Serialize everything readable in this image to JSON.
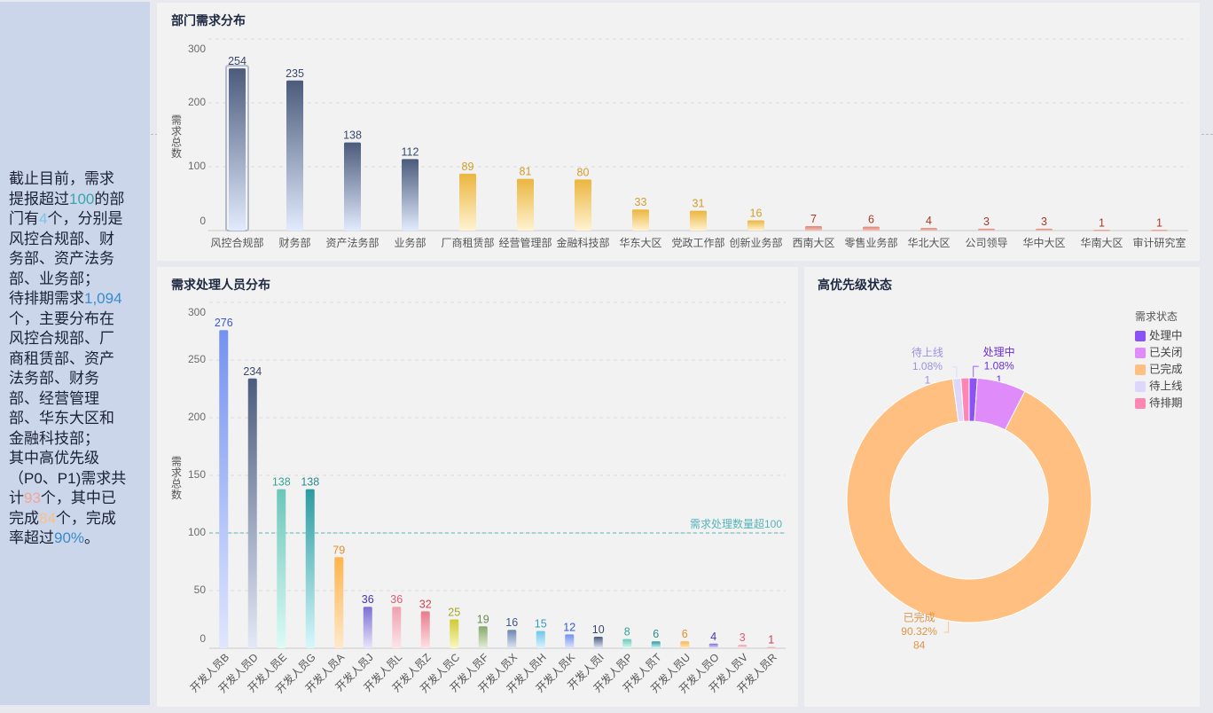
{
  "summary": {
    "lines": [
      [
        {
          "text": "截止目前，需求"
        }
      ],
      [
        {
          "text": "提报超过"
        },
        {
          "text": "100",
          "color": "#3aa6ab"
        },
        {
          "text": "的部"
        }
      ],
      [
        {
          "text": "门有"
        },
        {
          "text": "4",
          "color": "#7cc6e6"
        },
        {
          "text": "个，分别是"
        }
      ],
      [
        {
          "text": "风控合规部、财"
        }
      ],
      [
        {
          "text": "务部、资产法务"
        }
      ],
      [
        {
          "text": "部、业务部；"
        }
      ],
      [
        {
          "text": "待排期需求"
        },
        {
          "text": "1,094",
          "color": "#3a8bcb"
        }
      ],
      [
        {
          "text": "个，主要分布在"
        }
      ],
      [
        {
          "text": "风控合规部、厂"
        }
      ],
      [
        {
          "text": "商租赁部、资产"
        }
      ],
      [
        {
          "text": "法务部、财务"
        }
      ],
      [
        {
          "text": "部、经营管理"
        }
      ],
      [
        {
          "text": "部、华东大区和"
        }
      ],
      [
        {
          "text": "金融科技部；"
        }
      ],
      [
        {
          "text": "其中高优先级"
        }
      ],
      [
        {
          "text": "（P0、P1)需求共"
        }
      ],
      [
        {
          "text": "计"
        },
        {
          "text": "93",
          "color": "#f4a597"
        },
        {
          "text": "个，其中已"
        }
      ],
      [
        {
          "text": "完成"
        },
        {
          "text": "84",
          "color": "#f8c189"
        },
        {
          "text": "个，完成"
        }
      ],
      [
        {
          "text": "率超过"
        },
        {
          "text": "90%",
          "color": "#3a8bcb"
        },
        {
          "text": "。"
        }
      ]
    ]
  },
  "chart_data": [
    {
      "type": "bar",
      "title": "部门需求分布",
      "xlabel": "",
      "ylabel": "需求总数",
      "ylim": [
        0,
        300
      ],
      "yticks": [
        0,
        100,
        200,
        300
      ],
      "grid": true,
      "categories": [
        "风控合规部",
        "财务部",
        "资产法务部",
        "业务部",
        "厂商租赁部",
        "经营管理部",
        "金融科技部",
        "华东大区",
        "党政工作部",
        "创新业务部",
        "西南大区",
        "零售业务部",
        "华北大区",
        "公司领导",
        "华中大区",
        "华南大区",
        "审计研究室"
      ],
      "values": [
        254,
        235,
        138,
        112,
        89,
        81,
        80,
        33,
        31,
        16,
        7,
        6,
        4,
        3,
        3,
        1,
        1
      ],
      "bar_color_tier": [
        "navy",
        "navy",
        "navy",
        "navy",
        "gold",
        "gold",
        "gold",
        "gold",
        "gold",
        "gold",
        "red",
        "red",
        "red",
        "red",
        "red",
        "red",
        "red"
      ],
      "tiers": {
        "navy": {
          "top": "#4b5b7c",
          "bottom": "#e2ebfd",
          "label": "#3a4868"
        },
        "gold": {
          "top": "#ebb63f",
          "bottom": "#fff3d2",
          "label": "#d19d2c"
        },
        "red": {
          "top": "#de8474",
          "bottom": "#f3c2b8",
          "label": "#a9392b"
        }
      },
      "highlighted_category": "风控合规部"
    },
    {
      "type": "bar",
      "title": "需求处理人员分布",
      "xlabel": "",
      "ylabel": "需求总数",
      "ylim": [
        0,
        300
      ],
      "yticks": [
        0,
        50,
        100,
        150,
        200,
        250,
        300
      ],
      "grid": true,
      "categories": [
        "开发人员B",
        "开发人员D",
        "开发人员E",
        "开发人员G",
        "开发人员A",
        "开发人员J",
        "开发人员L",
        "开发人员Z",
        "开发人员C",
        "开发人员F",
        "开发人员X",
        "开发人员H",
        "开发人员K",
        "开发人员I",
        "开发人员P",
        "开发人员T",
        "开发人员U",
        "开发人员O",
        "开发人员V",
        "开发人员R"
      ],
      "values": [
        276,
        234,
        138,
        138,
        79,
        36,
        36,
        32,
        25,
        19,
        16,
        15,
        12,
        10,
        8,
        6,
        6,
        4,
        3,
        1
      ],
      "palette": [
        {
          "top": "#7491f1",
          "bottom": "#dfe7fd",
          "label": "#3957c9"
        },
        {
          "top": "#4c5c7d",
          "bottom": "#e3e9f6",
          "label": "#3a4868"
        },
        {
          "top": "#6cc6ba",
          "bottom": "#ddfbf6",
          "label": "#35a596"
        },
        {
          "top": "#2b9ba1",
          "bottom": "#d7f8fb",
          "label": "#288a90"
        },
        {
          "top": "#ffb44c",
          "bottom": "#ffe9cb",
          "label": "#e58f2a"
        },
        {
          "top": "#7b70d2",
          "bottom": "#e9e5fc",
          "label": "#4634b0"
        },
        {
          "top": "#f09fb0",
          "bottom": "#fde6eb",
          "label": "#e05a72"
        },
        {
          "top": "#e97b8b",
          "bottom": "#fde2e7",
          "label": "#cf3f52"
        },
        {
          "top": "#d0cb2e",
          "bottom": "#f9f8c4",
          "label": "#a8a51e"
        },
        {
          "top": "#87a96d",
          "bottom": "#e3eed8",
          "label": "#6a8a4a"
        },
        {
          "top": "#6d86ae",
          "bottom": "#dfe6f2",
          "label": "#3d5784"
        },
        {
          "top": "#6fc7ea",
          "bottom": "#dcf3fc",
          "label": "#389bc6"
        }
      ],
      "reference_line": {
        "value": 100,
        "label": "需求处理数量超100",
        "color": "#56b4b9"
      }
    },
    {
      "type": "pie",
      "title": "高优先级状态",
      "donut": true,
      "legend_title": "需求状态",
      "legend": "top-right",
      "total": 93,
      "slices": [
        {
          "name": "处理中",
          "value": 1,
          "percent": "1.08%",
          "color": "#8b52f6",
          "label_color": "#6a30d6",
          "label_visible": true
        },
        {
          "name": "已关闭",
          "value": 6,
          "color": "#e08bfa",
          "label_color": "#c060e0",
          "label_visible": false
        },
        {
          "name": "已完成",
          "value": 84,
          "percent": "90.32%",
          "color": "#ffbf80",
          "label_color": "#e09448",
          "label_visible": true
        },
        {
          "name": "待上线",
          "value": 1,
          "percent": "1.08%",
          "color": "#dcd7fb",
          "label_color": "#9b91e2",
          "label_visible": true
        },
        {
          "name": "待排期",
          "value": 1,
          "color": "#ff85b3",
          "label_color": "#f0609a",
          "label_visible": false
        }
      ]
    }
  ]
}
